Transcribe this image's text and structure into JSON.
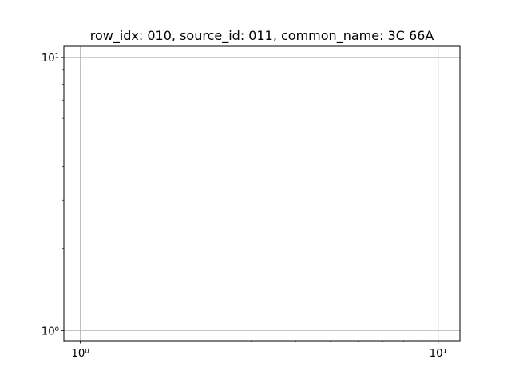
{
  "chart_data": {
    "type": "scatter",
    "title": "row_idx: 010, source_id: 011, common_name: 3C 66A",
    "xlabel": "",
    "ylabel": "",
    "xscale": "log",
    "yscale": "log",
    "xlim": [
      0.9,
      11.5
    ],
    "ylim": [
      0.92,
      11.0
    ],
    "grid": true,
    "x_ticks": [
      {
        "value": 1,
        "label": "10⁰"
      },
      {
        "value": 10,
        "label": "10¹"
      }
    ],
    "y_ticks": [
      {
        "value": 1,
        "label": "10⁰"
      },
      {
        "value": 10,
        "label": "10¹"
      }
    ],
    "series": []
  },
  "colors": {
    "grid": "#b0b0b0",
    "axes": "#000000",
    "background": "#ffffff"
  }
}
